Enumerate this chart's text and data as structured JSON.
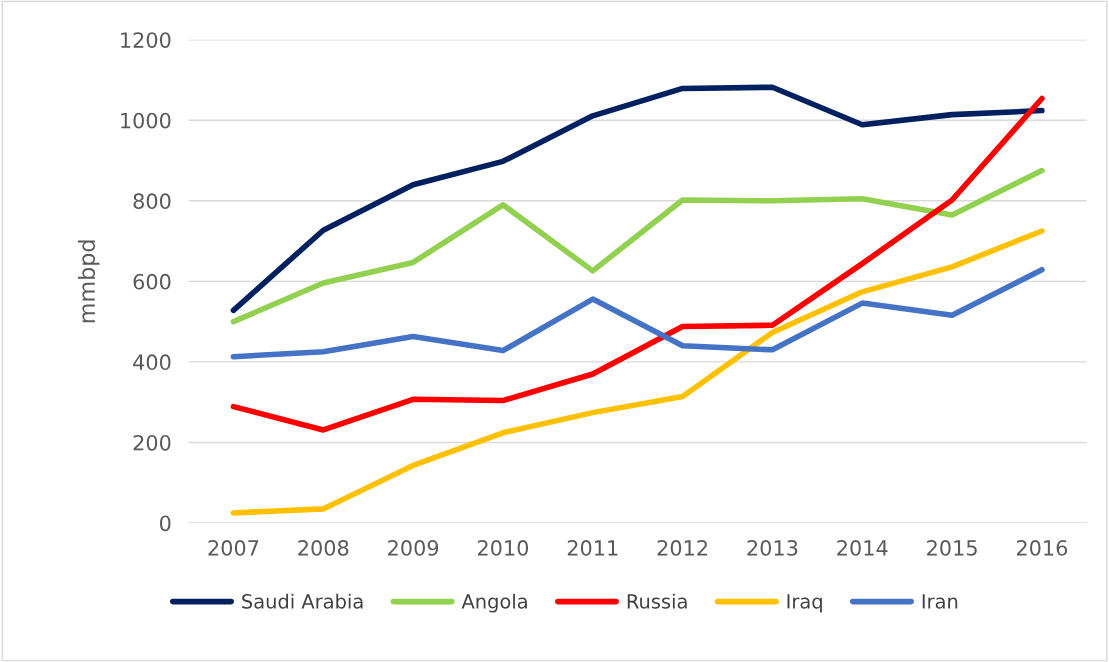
{
  "chart_data": {
    "type": "line",
    "ylabel": "mmbpd",
    "categories": [
      "2007",
      "2008",
      "2009",
      "2010",
      "2011",
      "2012",
      "2013",
      "2014",
      "2015",
      "2016"
    ],
    "series": [
      {
        "name": "Saudi Arabia",
        "color": "#002060",
        "values": [
          528,
          727,
          840,
          898,
          1011,
          1079,
          1082,
          989,
          1014,
          1024
        ]
      },
      {
        "name": "Angola",
        "color": "#92d050",
        "values": [
          500,
          596,
          647,
          790,
          626,
          802,
          800,
          805,
          765,
          875
        ]
      },
      {
        "name": "Russia",
        "color": "#ff0000",
        "values": [
          289,
          231,
          307,
          304,
          370,
          488,
          491,
          644,
          802,
          1054
        ]
      },
      {
        "name": "Iraq",
        "color": "#ffc000",
        "values": [
          25,
          35,
          143,
          224,
          274,
          314,
          473,
          574,
          636,
          725
        ]
      },
      {
        "name": "Iran",
        "color": "#4472c4",
        "values": [
          413,
          425,
          463,
          428,
          556,
          440,
          430,
          546,
          516,
          629
        ]
      }
    ],
    "ylim": [
      0,
      1200
    ],
    "yticks": [
      0,
      200,
      400,
      600,
      800,
      1000,
      1200
    ],
    "grid": "y",
    "legend": "bottom",
    "marker": "none",
    "line_style": "solid"
  }
}
